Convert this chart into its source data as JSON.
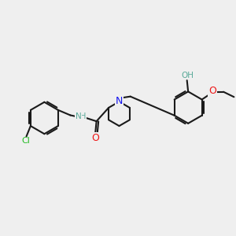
{
  "bg": "#efefef",
  "bond_color": "#1a1a1a",
  "lw": 1.5,
  "fs": 7.5,
  "colors": {
    "N": "#1414ee",
    "O": "#ee1414",
    "OH": "#5aaa99",
    "Cl": "#22bb22",
    "dark": "#1a1a1a"
  },
  "figsize": [
    3.0,
    3.0
  ],
  "dpi": 100
}
